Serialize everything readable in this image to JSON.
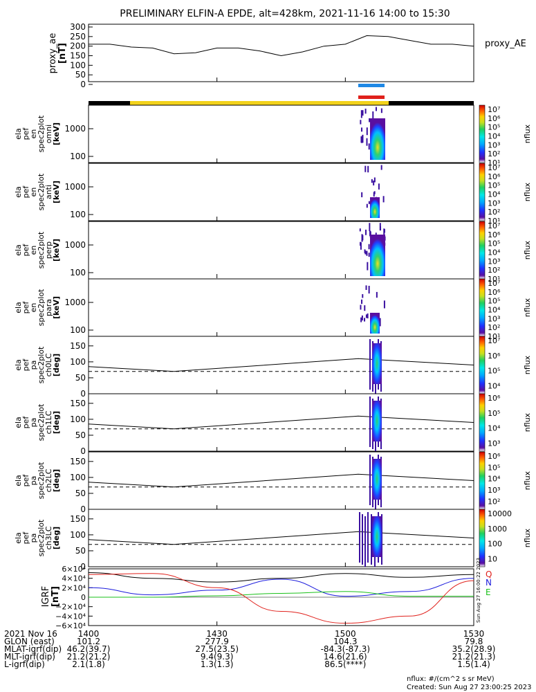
{
  "title": "PRELIMINARY ELFIN-A EPDE, alt=428km, 2021-11-16 14:00 to 15:30",
  "time_axis": {
    "start": "14:00",
    "end": "15:30",
    "ticks": [
      "1400",
      "1430",
      "1500",
      "1530"
    ]
  },
  "colors": {
    "bar_black": "#000000",
    "bar_yellow": "#f2d21b",
    "blue_marker": "#1e88e5",
    "red_marker": "#e0201b",
    "bfield_x": "#e0201b",
    "bfield_y": "#1a1adc",
    "bfield_z": "#18c018",
    "bfield_total": "#000000"
  },
  "bars": {
    "blue_interval": [
      "15:03",
      "15:08"
    ],
    "red_interval": [
      "15:03",
      "15:08"
    ],
    "yellow_interval": [
      "14:10",
      "15:08"
    ],
    "black_intervals": [
      [
        "14:00",
        "14:10"
      ],
      [
        "15:08",
        "15:30"
      ]
    ]
  },
  "panels": [
    {
      "id": "proxy_ae",
      "ylabel": [
        "proxy_ae",
        "[nT]"
      ],
      "right_label": "proxy_AE",
      "yticks": [
        "300",
        "250",
        "200",
        "150",
        "100",
        "50",
        "0"
      ]
    },
    {
      "id": "omni",
      "ylabel": [
        "ela",
        "pef",
        "en",
        "spec2plot",
        "omni",
        "[keV]"
      ],
      "yticks": [
        "1000",
        "100"
      ],
      "cbar_label": "nflux",
      "cbar_ticks": [
        "10⁷",
        "10⁶",
        "10⁵",
        "10⁴",
        "10³",
        "10²",
        "10¹"
      ]
    },
    {
      "id": "anti",
      "ylabel": [
        "ela",
        "pef",
        "en",
        "spec2plot",
        "anti",
        "[keV]"
      ],
      "yticks": [
        "1000",
        "100"
      ],
      "cbar_label": "nflux",
      "cbar_ticks": [
        "10⁷",
        "10⁶",
        "10⁵",
        "10⁴",
        "10³",
        "10²",
        "10¹"
      ]
    },
    {
      "id": "perp",
      "ylabel": [
        "ela",
        "pef",
        "en",
        "spec2plot",
        "perp",
        "[keV]"
      ],
      "yticks": [
        "1000",
        "100"
      ],
      "cbar_label": "nflux",
      "cbar_ticks": [
        "10⁷",
        "10⁶",
        "10⁵",
        "10⁴",
        "10³",
        "10²",
        "10¹"
      ]
    },
    {
      "id": "para",
      "ylabel": [
        "ela",
        "pef",
        "en",
        "spec2plot",
        "para",
        "[keV]"
      ],
      "yticks": [
        "1000",
        "100"
      ],
      "cbar_label": "nflux",
      "cbar_ticks": [
        "10⁷",
        "10⁶",
        "10⁵",
        "10⁴",
        "10³",
        "10²",
        "10¹"
      ]
    },
    {
      "id": "ch0",
      "ylabel": [
        "ela",
        "pef",
        "pa",
        "spec2plot",
        "ch0LC",
        "[deg]"
      ],
      "yticks": [
        "150",
        "100",
        "50",
        "0"
      ],
      "cbar_label": "nflux",
      "cbar_ticks": [
        "10⁷",
        "10⁶",
        "10⁵",
        "10⁴"
      ]
    },
    {
      "id": "ch1",
      "ylabel": [
        "ela",
        "pef",
        "pa",
        "spec2plot",
        "ch1LC",
        "[deg]"
      ],
      "yticks": [
        "150",
        "100",
        "50",
        "0"
      ],
      "cbar_label": "nflux",
      "cbar_ticks": [
        "10⁶",
        "10⁵",
        "10⁴",
        "10³"
      ]
    },
    {
      "id": "ch2",
      "ylabel": [
        "ela",
        "pef",
        "pa",
        "spec2plot",
        "ch2LC",
        "[deg]"
      ],
      "yticks": [
        "150",
        "100",
        "50",
        "0"
      ],
      "cbar_label": "nflux",
      "cbar_ticks": [
        "10⁶",
        "10⁵",
        "10⁴",
        "10³",
        "10²"
      ]
    },
    {
      "id": "ch3",
      "ylabel": [
        "ela",
        "pef",
        "pa",
        "spec2plot",
        "ch3LC",
        "[deg]"
      ],
      "yticks": [
        "150",
        "100",
        "50",
        "0"
      ],
      "cbar_label": "nflux",
      "cbar_ticks": [
        "10000",
        "1000",
        "100",
        "10"
      ]
    },
    {
      "id": "igrf",
      "ylabel": [
        "IGRF",
        "[nT]"
      ],
      "yticks": [
        "6×10⁴",
        "4×10⁴",
        "2×10⁴",
        "0",
        "−2×10⁴",
        "−4×10⁴",
        "−6×10⁴"
      ],
      "legend": [
        "Q",
        "N",
        "E"
      ]
    }
  ],
  "chart_data": {
    "type": "line",
    "x_unit": "UT",
    "proxy_ae": {
      "x": [
        "14:00",
        "14:05",
        "14:10",
        "14:15",
        "14:20",
        "14:25",
        "14:30",
        "14:35",
        "14:40",
        "14:45",
        "14:50",
        "14:55",
        "15:00",
        "15:05",
        "15:10",
        "15:15",
        "15:20",
        "15:25",
        "15:30"
      ],
      "y": [
        210,
        210,
        195,
        190,
        160,
        165,
        190,
        190,
        175,
        150,
        170,
        200,
        210,
        255,
        250,
        230,
        210,
        210,
        200
      ],
      "ylim": [
        0,
        300
      ]
    },
    "ch0LC_losscone": {
      "x": [
        "14:00",
        "14:20",
        "15:03",
        "15:30"
      ],
      "solid": [
        85,
        70,
        110,
        90
      ],
      "dashed": [
        70,
        70,
        70,
        70
      ],
      "ylim": [
        0,
        180
      ]
    },
    "igrf": {
      "x": [
        "14:00",
        "14:15",
        "14:30",
        "14:45",
        "15:00",
        "15:15",
        "15:30"
      ],
      "total": [
        52000,
        40000,
        32000,
        40000,
        50000,
        42000,
        48000
      ],
      "N": [
        20000,
        5000,
        15000,
        38000,
        2000,
        12000,
        40000
      ],
      "E": [
        0,
        0,
        3000,
        8000,
        12000,
        2000,
        2000
      ],
      "Q": [
        48000,
        50000,
        20000,
        -30000,
        -55000,
        -40000,
        35000
      ],
      "ylim": [
        -60000,
        60000
      ]
    }
  },
  "footer": {
    "rows": [
      {
        "label": "2021 Nov 16",
        "values": [
          "1400",
          "1430",
          "1500",
          "1530"
        ]
      },
      {
        "label": "GLON (east)",
        "values": [
          "101.2",
          "277.9",
          "104.3",
          "79.8"
        ]
      },
      {
        "label": "MLAT-igrf(dip)",
        "values": [
          "46.2(39.7)",
          "27.5(23.5)",
          "-84.3(-87.3)",
          "35.2(28.9)"
        ]
      },
      {
        "label": "MLT-igrf(dip)",
        "values": [
          "21.2(21.2)",
          "9.4(9.3)",
          "14.6(21.6)",
          "21.2(21.3)"
        ]
      },
      {
        "label": "L-igrf(dip)",
        "values": [
          "2.1(1.8)",
          "1.3(1.3)",
          "86.5(****)",
          "1.5(1.4)"
        ]
      }
    ],
    "nflux_unit": "nflux: #/(cm^2 s sr MeV)",
    "created": "Created: Sun Aug 27 23:00:25 2023",
    "vertical_stamp": "Sun Aug 27 16:00:22 2023"
  }
}
